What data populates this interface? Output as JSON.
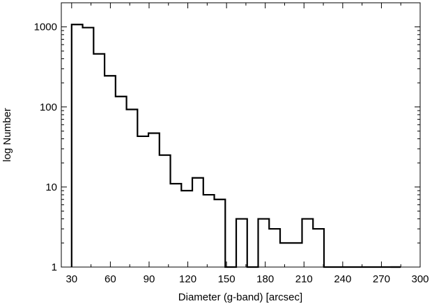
{
  "chart_data": {
    "type": "bar",
    "subtype": "step-histogram",
    "xlabel": "Diameter (g-band) [arcsec]",
    "ylabel": "log Number",
    "y_scale": "log",
    "xlim": [
      22,
      300
    ],
    "ylim": [
      1,
      2000
    ],
    "x_ticks": [
      30,
      60,
      90,
      120,
      150,
      180,
      210,
      240,
      270,
      300
    ],
    "y_ticks": [
      1,
      10,
      100,
      1000
    ],
    "y_tick_labels": [
      "1",
      "10",
      "100",
      "1000"
    ],
    "grid": false,
    "legend": "none",
    "bin_edges": [
      30,
      38.5,
      47,
      55.5,
      64,
      72.5,
      81,
      89.5,
      98,
      106.5,
      115,
      123.5,
      132,
      140.5,
      149,
      157.5,
      166,
      174.5,
      183,
      191.5,
      200,
      208.5,
      217,
      225.5,
      234,
      242.5,
      251,
      259.5,
      268,
      276.5
    ],
    "counts": [
      1070,
      980,
      460,
      245,
      135,
      93,
      43,
      47,
      25,
      11,
      9,
      13,
      8,
      7,
      1,
      4,
      1,
      4,
      3,
      2,
      2,
      4,
      3,
      0,
      1,
      0,
      0,
      0,
      0,
      1
    ],
    "line_color": "#000000"
  }
}
